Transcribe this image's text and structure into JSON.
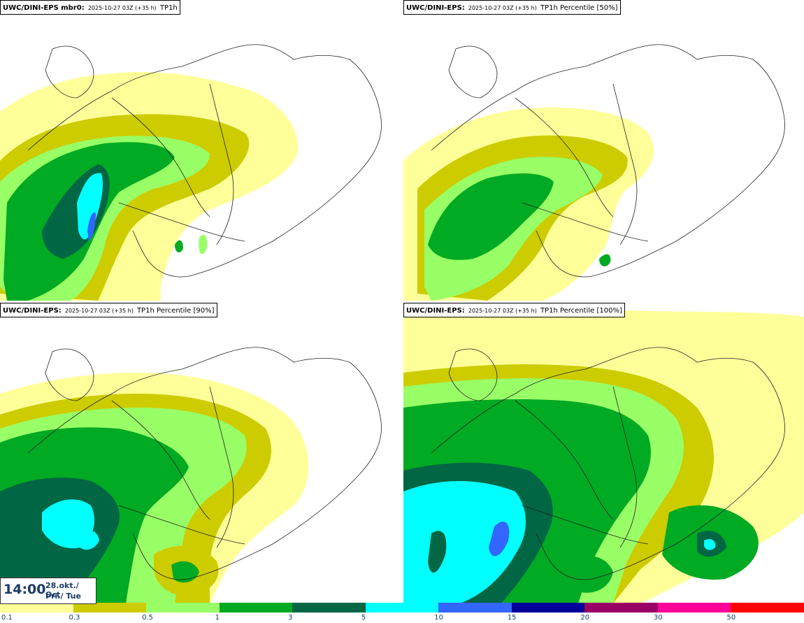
{
  "panels": [
    {
      "model": "UWC/DINI-EPS mbr0",
      "run": "2025-10-27 03Z (+35 h)",
      "field": "TP1h"
    },
    {
      "model": "UWC/DINI-EPS",
      "run": "2025-10-27 03Z (+35 h)",
      "field": "TP1h Percentile [50%]"
    },
    {
      "model": "UWC/DINI-EPS",
      "run": "2025-10-27 03Z (+35 h)",
      "field": "TP1h Percentile [90%]"
    },
    {
      "model": "UWC/DINI-EPS",
      "run": "2025-10-27 03Z (+35 h)",
      "field": "TP1h Percentile [100%]"
    }
  ],
  "valid_time": {
    "time": "14:00",
    "date": "28.okt./ Oct",
    "weekday": "Þri./ Tue"
  },
  "legend": {
    "colors": [
      "#ffff99",
      "#cccc00",
      "#99ff66",
      "#00aa22",
      "#006644",
      "#00ffff",
      "#3366ff",
      "#000099",
      "#990066",
      "#ff0099",
      "#ff0000"
    ],
    "labels": [
      "0.1",
      "0.3",
      "0.5",
      "1",
      "3",
      "5",
      "10",
      "15",
      "20",
      "30",
      "50"
    ]
  }
}
